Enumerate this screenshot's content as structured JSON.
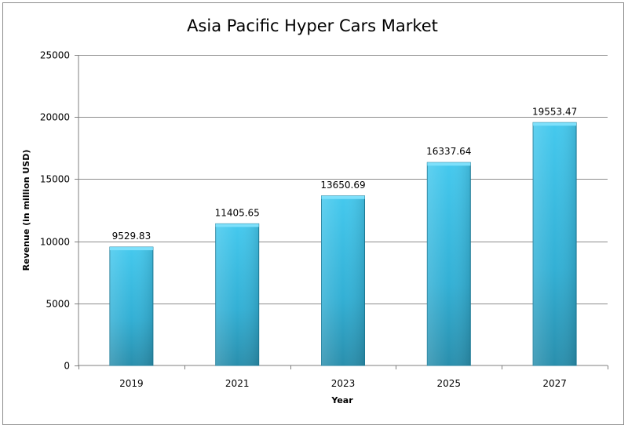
{
  "chart_data": {
    "type": "bar",
    "title": "Asia Pacific Hyper Cars Market",
    "xlabel": "Year",
    "ylabel": "Revenue (in million USD)",
    "categories": [
      "2019",
      "2021",
      "2023",
      "2025",
      "2027"
    ],
    "values": [
      9529.83,
      11405.65,
      13650.69,
      16337.64,
      19553.47
    ],
    "data_labels": [
      "9529.83",
      "11405.65",
      "13650.69",
      "16337.64",
      "19553.47"
    ],
    "ylim": [
      0,
      25000
    ],
    "yticks": [
      0,
      5000,
      10000,
      15000,
      20000,
      25000
    ],
    "ytick_labels": [
      "0",
      "5000",
      "10000",
      "15000",
      "20000",
      "25000"
    ],
    "grid": true,
    "legend": "none",
    "bar_color": "#3ab8dc"
  }
}
